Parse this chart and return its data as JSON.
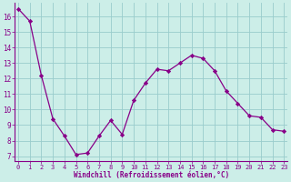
{
  "x": [
    0,
    1,
    2,
    3,
    4,
    5,
    6,
    7,
    8,
    9,
    10,
    11,
    12,
    13,
    14,
    15,
    16,
    17,
    18,
    19,
    20,
    21,
    22,
    23
  ],
  "y": [
    16.5,
    15.7,
    12.2,
    9.4,
    8.3,
    7.1,
    7.2,
    8.3,
    9.3,
    8.4,
    10.6,
    11.7,
    12.6,
    12.5,
    13.0,
    13.5,
    13.3,
    12.5,
    11.2,
    10.4,
    9.6,
    9.5,
    8.7,
    8.6
  ],
  "line_color": "#880088",
  "marker": "D",
  "marker_size": 2.2,
  "bg_color": "#cceee8",
  "grid_color": "#99cccc",
  "xlabel": "Windchill (Refroidissement éolien,°C)",
  "xlabel_color": "#880088",
  "tick_color": "#880088",
  "yticks": [
    7,
    8,
    9,
    10,
    11,
    12,
    13,
    14,
    15,
    16
  ],
  "xticks": [
    0,
    1,
    2,
    3,
    4,
    5,
    6,
    7,
    8,
    9,
    10,
    11,
    12,
    13,
    14,
    15,
    16,
    17,
    18,
    19,
    20,
    21,
    22,
    23
  ],
  "ylim": [
    6.7,
    16.9
  ],
  "xlim": [
    -0.3,
    23.3
  ]
}
